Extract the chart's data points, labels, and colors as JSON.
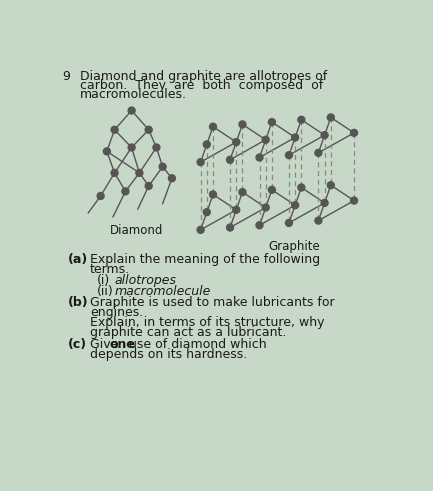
{
  "bg_color": "#c8d8c8",
  "text_color": "#1a1a1a",
  "question_number": "9",
  "intro_line1": "Diamond and graphite are allotropes of",
  "intro_line2": "carbon.  They  are  both  composed  of",
  "intro_line3": "macromolecules.",
  "label_diamond": "Diamond",
  "label_graphite": "Graphite",
  "part_a_label": "(a)",
  "part_a_text1": "Explain the meaning of the following",
  "part_a_text2": "terms.",
  "part_a_i_label": "(i)",
  "part_a_i_text": "allotropes",
  "part_a_ii_label": "(ii)",
  "part_a_ii_text": "macromolecule",
  "part_b_label": "(b)",
  "part_b_text1": "Graphite is used to make lubricants for",
  "part_b_text2": "engines.",
  "part_b_text3": "Explain, in terms of its structure, why",
  "part_b_text4": "graphite can act as a lubricant.",
  "part_c_label": "(c)",
  "part_c_text1": "Give one use of diamond which",
  "part_c_text2": "depends on its hardness.",
  "node_color": "#555555",
  "line_color": "#555555",
  "dashed_color": "#888888"
}
